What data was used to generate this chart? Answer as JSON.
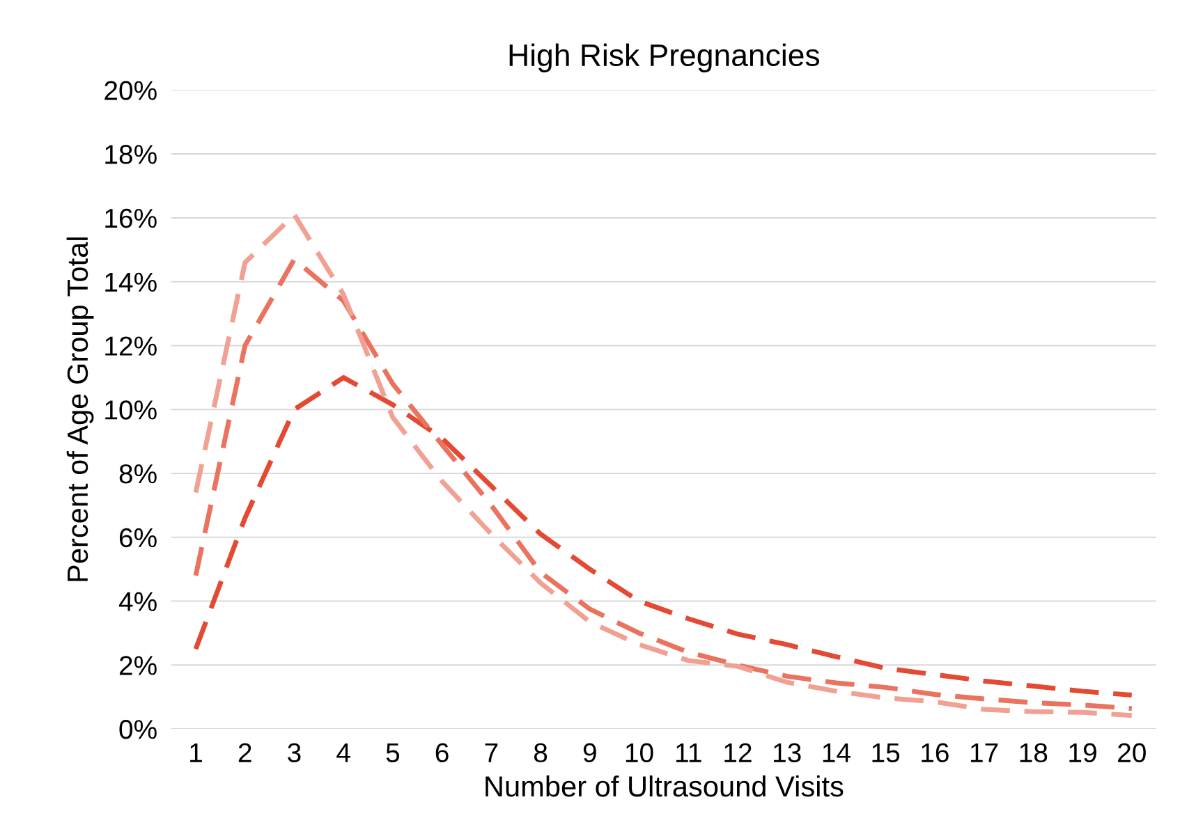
{
  "chart_data": {
    "type": "line",
    "title": "High Risk Pregnancies",
    "xlabel": "Number of Ultrasound Visits",
    "ylabel": "Percent of Age Group Total",
    "categories": [
      "1",
      "2",
      "3",
      "4",
      "5",
      "6",
      "7",
      "8",
      "9",
      "10",
      "11",
      "12",
      "13",
      "14",
      "15",
      "16",
      "17",
      "18",
      "19",
      "20"
    ],
    "series": [
      {
        "color": "#e34a33",
        "values": [
          2.5,
          6.6,
          10.0,
          11.0,
          10.15,
          9.1,
          7.6,
          6.1,
          5.0,
          4.0,
          3.45,
          2.97,
          2.64,
          2.26,
          1.9,
          1.7,
          1.5,
          1.34,
          1.18,
          1.06
        ]
      },
      {
        "color": "#ea735f",
        "values": [
          4.8,
          12.0,
          14.7,
          13.4,
          10.8,
          8.9,
          7.0,
          4.9,
          3.75,
          3.0,
          2.4,
          2.0,
          1.65,
          1.44,
          1.3,
          1.08,
          0.94,
          0.82,
          0.75,
          0.64
        ]
      },
      {
        "color": "#f1a193",
        "values": [
          7.4,
          14.6,
          16.1,
          13.6,
          9.75,
          7.75,
          6.1,
          4.57,
          3.35,
          2.64,
          2.14,
          1.96,
          1.46,
          1.18,
          0.97,
          0.85,
          0.61,
          0.54,
          0.52,
          0.42
        ]
      }
    ],
    "ylim": [
      0,
      20
    ],
    "yticks": [
      {
        "value": 0,
        "label": "0%"
      },
      {
        "value": 2,
        "label": "2%"
      },
      {
        "value": 4,
        "label": "4%"
      },
      {
        "value": 6,
        "label": "6%"
      },
      {
        "value": 8,
        "label": "8%"
      },
      {
        "value": 10,
        "label": "10%"
      },
      {
        "value": 12,
        "label": "12%"
      },
      {
        "value": 14,
        "label": "14%"
      },
      {
        "value": 16,
        "label": "16%"
      },
      {
        "value": 18,
        "label": "18%"
      },
      {
        "value": 20,
        "label": "20%"
      }
    ],
    "grid": "y",
    "legend": false,
    "marker": "none",
    "line_style": "dashed"
  }
}
